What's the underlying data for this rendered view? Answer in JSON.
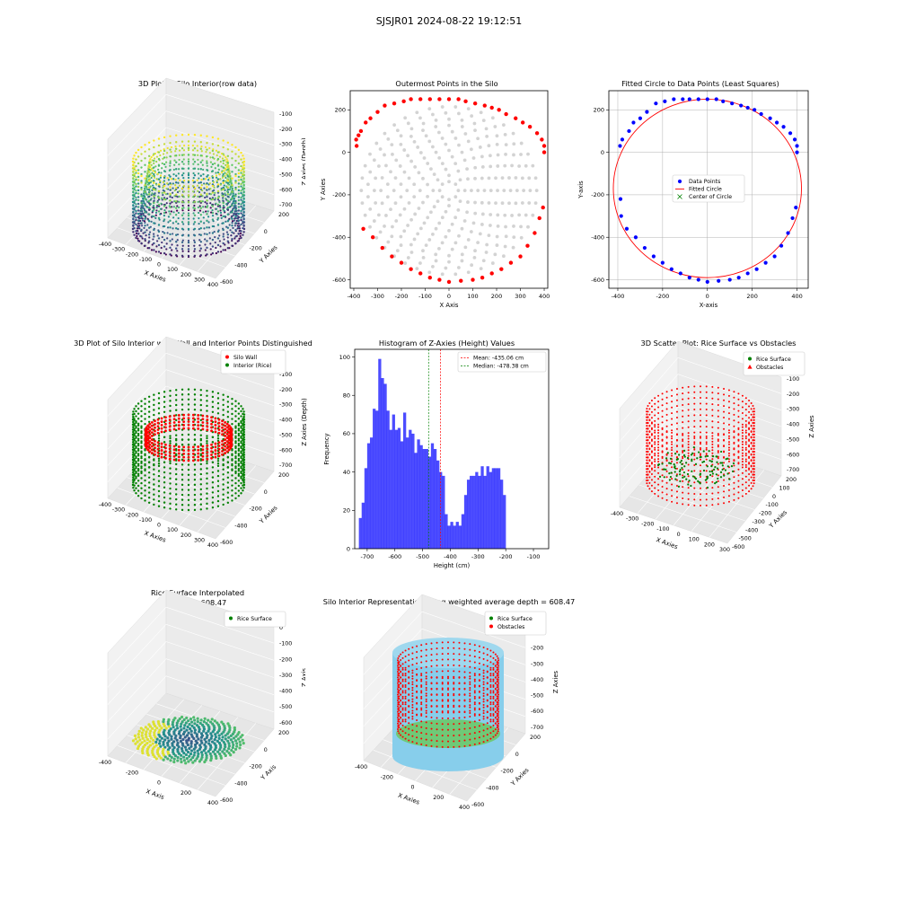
{
  "suptitle": "SJSJR01 2024-08-22 19:12:51",
  "colors": {
    "wall": "#ff0000",
    "rice": "#008000",
    "hist": "#0000ff",
    "mean": "#ff0000",
    "median": "#008000",
    "grey": "#d3d3d3",
    "cyl": "#87ceeb"
  },
  "panels": {
    "p1": {
      "title": "3D Plot of Silo Interior(row data)",
      "xlabel": "X Axies",
      "ylabel": "Y Axies",
      "zlabel": "Z Axies (Depth)",
      "xticks": [
        "-400",
        "-300",
        "-200",
        "-100",
        "0",
        "100",
        "200",
        "300",
        "400"
      ],
      "yticks": [
        "200",
        "0",
        "-200",
        "-400",
        "-600"
      ],
      "zticks": [
        "-100",
        "-200",
        "-300",
        "-400",
        "-500",
        "-600",
        "-700"
      ]
    },
    "p4": {
      "title": "3D Plot of Silo Interior with Wall and Interior Points Distinguished",
      "xlabel": "X Axies",
      "ylabel": "Y Axies",
      "zlabel": "Z Axies (Depth)",
      "legend": [
        "Silo Wall",
        "Interior (Rice)"
      ],
      "xticks": [
        "-400",
        "-300",
        "-200",
        "-100",
        "0",
        "100",
        "200",
        "300",
        "400"
      ],
      "yticks": [
        "200",
        "0",
        "-200",
        "-400",
        "-600"
      ],
      "zticks": [
        "-100",
        "-200",
        "-300",
        "-400",
        "-500",
        "-600",
        "-700"
      ]
    },
    "p6": {
      "title": "3D Scatter Plot: Rice Surface vs Obstacles",
      "xlabel": "X Axies",
      "ylabel": "Y Axies",
      "zlabel": "Z Axies",
      "legend": [
        "Rice Surface",
        "Obstacles"
      ],
      "xticks": [
        "-400",
        "-300",
        "-200",
        "-100",
        "0",
        "100",
        "200",
        "300"
      ],
      "yticks": [
        "200",
        "100",
        "0",
        "-100",
        "-200",
        "-300",
        "-400",
        "-500",
        "-600"
      ],
      "zticks": [
        "-100",
        "-200",
        "-300",
        "-400",
        "-500",
        "-600",
        "-700"
      ]
    },
    "p7": {
      "title": "Rice Surface Interpolated",
      "subtitle": "depth = 608.47",
      "xlabel": "X Axis",
      "ylabel": "Y Axis",
      "zlabel": "Z Axis",
      "legend": [
        "Rice Surface"
      ],
      "xticks": [
        "-400",
        "-200",
        "0",
        "200",
        "400"
      ],
      "yticks": [
        "200",
        "0",
        "-200",
        "-400",
        "-600"
      ],
      "zticks": [
        "0",
        "-100",
        "-200",
        "-300",
        "-400",
        "-500",
        "-600"
      ]
    },
    "p8": {
      "title": "Silo Interior Representation using weighted average depth = 608.47",
      "xlabel": "X Axies",
      "ylabel": "Y Axies",
      "zlabel": "Z Axies",
      "legend": [
        "Rice Surface",
        "Obstacles"
      ],
      "xticks": [
        "-400",
        "-200",
        "0",
        "200",
        "400"
      ],
      "yticks": [
        "200",
        "0",
        "-200",
        "-400",
        "-600"
      ],
      "zticks": [
        "-100",
        "-200",
        "-300",
        "-400",
        "-500",
        "-600",
        "-700"
      ]
    }
  },
  "chart_data": [
    {
      "type": "scatter",
      "title": "Outermost Points in the Silo",
      "xlabel": "X Axis",
      "ylabel": "Y Axies",
      "xlim": [
        -415,
        415
      ],
      "ylim": [
        -640,
        290
      ],
      "xticks": [
        -400,
        -300,
        -200,
        -100,
        0,
        100,
        200,
        300,
        400
      ],
      "yticks": [
        -600,
        -400,
        -200,
        0,
        200
      ],
      "series": [
        {
          "name": "outermost",
          "color": "#ff0000",
          "x": [
            -388,
            -390,
            -380,
            -370,
            -350,
            -330,
            -300,
            -270,
            -230,
            -190,
            -160,
            -120,
            -80,
            -40,
            0,
            40,
            70,
            110,
            150,
            180,
            210,
            240,
            280,
            310,
            340,
            370,
            390,
            400,
            400,
            395,
            380,
            360,
            330,
            300,
            260,
            220,
            180,
            140,
            100,
            50,
            0,
            -40,
            -80,
            -120,
            -160,
            -200,
            -240,
            -280,
            -320,
            -360
          ],
          "y": [
            30,
            60,
            80,
            100,
            140,
            160,
            190,
            220,
            230,
            240,
            250,
            250,
            250,
            250,
            250,
            250,
            240,
            230,
            220,
            210,
            200,
            180,
            160,
            140,
            120,
            90,
            60,
            30,
            0,
            -260,
            -310,
            -380,
            -440,
            -490,
            -520,
            -550,
            -570,
            -590,
            -600,
            -605,
            -610,
            -600,
            -590,
            -570,
            -550,
            -520,
            -490,
            -450,
            -400,
            -360
          ]
        }
      ]
    },
    {
      "type": "scatter",
      "title": "Fitted Circle to Data Points (Least Squares)",
      "xlabel": "X-axis",
      "ylabel": "Y-axis",
      "xlim": [
        -440,
        450
      ],
      "ylim": [
        -640,
        290
      ],
      "xticks": [
        -400,
        -200,
        0,
        200,
        400
      ],
      "yticks": [
        -600,
        -400,
        -200,
        0,
        200
      ],
      "legend": [
        "Data Points",
        "Fitted Circle",
        "Center of Circle"
      ],
      "circle": {
        "cx": 0,
        "cy": -170,
        "r": 420,
        "color": "#ff0000"
      },
      "center_marker_x": -5,
      "center_marker_y": -180,
      "series": [
        {
          "name": "Data Points",
          "color": "#0000ff",
          "x": [
            -390,
            -380,
            -350,
            -330,
            -300,
            -270,
            -230,
            -190,
            -150,
            -110,
            -80,
            -40,
            0,
            40,
            70,
            110,
            150,
            180,
            210,
            240,
            280,
            310,
            340,
            370,
            390,
            400,
            400,
            395,
            380,
            360,
            330,
            300,
            260,
            220,
            180,
            140,
            100,
            50,
            0,
            -40,
            -80,
            -120,
            -160,
            -200,
            -240,
            -280,
            -320,
            -360,
            -385,
            -388
          ],
          "y": [
            30,
            60,
            100,
            140,
            160,
            190,
            230,
            240,
            250,
            250,
            250,
            250,
            250,
            250,
            240,
            230,
            220,
            210,
            200,
            180,
            160,
            140,
            120,
            90,
            60,
            30,
            0,
            -260,
            -310,
            -380,
            -440,
            -490,
            -520,
            -550,
            -570,
            -590,
            -600,
            -605,
            -610,
            -600,
            -590,
            -570,
            -550,
            -520,
            -490,
            -450,
            -400,
            -360,
            -300,
            -220
          ]
        }
      ]
    },
    {
      "type": "bar",
      "title": "Histogram of Z-Axies (Height) Values",
      "xlabel": "Height (cm)",
      "ylabel": "Frequency",
      "xlim": [
        -745,
        -45
      ],
      "ylim": [
        0,
        104
      ],
      "xticks": [
        -700,
        -600,
        -500,
        -400,
        -300,
        -200,
        -100
      ],
      "yticks": [
        0,
        20,
        40,
        60,
        80,
        100
      ],
      "bin_start": -730,
      "bin_width": 10,
      "values": [
        16,
        24,
        42,
        55,
        58,
        73,
        72,
        99,
        89,
        86,
        72,
        62,
        70,
        62,
        63,
        56,
        71,
        58,
        62,
        60,
        50,
        57,
        54,
        52,
        52,
        48,
        55,
        52,
        46,
        40,
        38,
        18,
        12,
        14,
        12,
        14,
        12,
        18,
        28,
        36,
        38,
        38,
        40,
        38,
        43,
        38,
        43,
        40,
        42,
        42,
        42,
        36,
        28
      ],
      "mean": -435.06,
      "median": -478.38,
      "legend": [
        "Mean: -435.06 cm",
        "Median: -478.38 cm"
      ]
    }
  ]
}
